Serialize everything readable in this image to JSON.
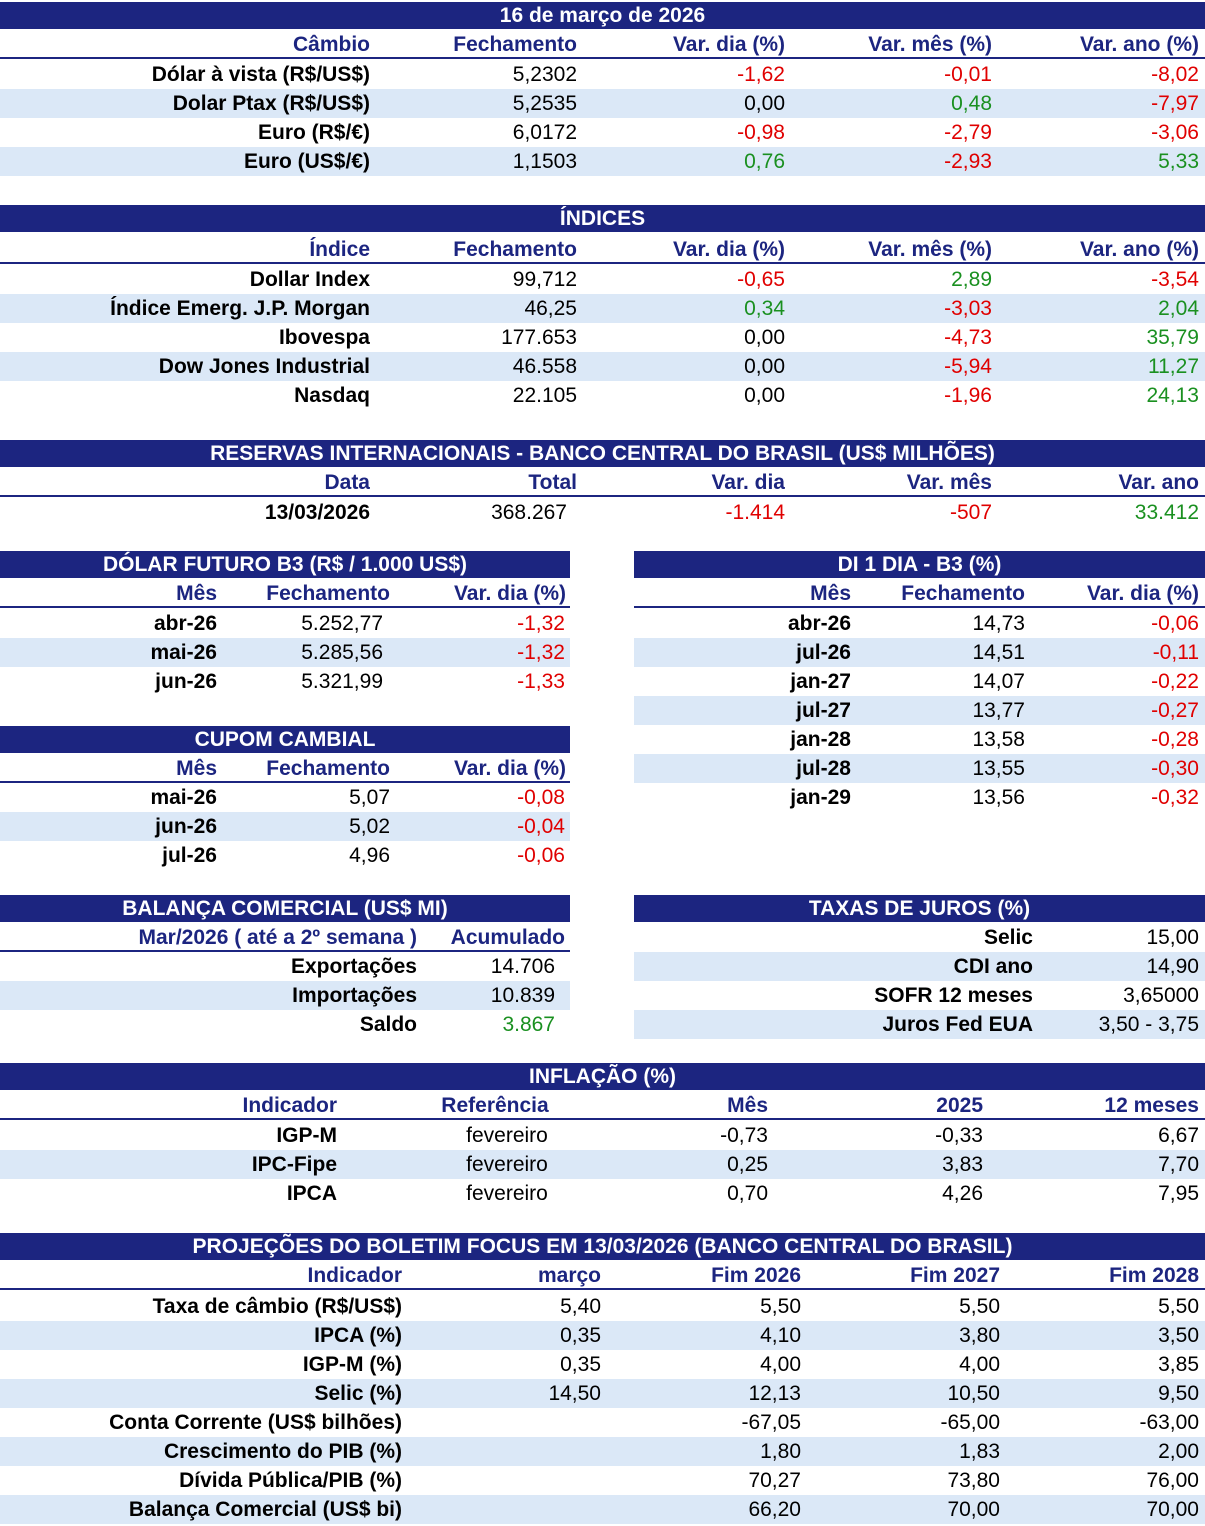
{
  "colors": {
    "header_bg": "#1c2580",
    "alt_row_bg": "#dbe8f7",
    "negative": "#e00000",
    "positive": "#1a9020"
  },
  "title": "16 de março de 2026",
  "cambio": {
    "headers": [
      "Câmbio",
      "Fechamento",
      "Var. dia (%)",
      "Var. mês (%)",
      "Var. ano (%)"
    ],
    "rows": [
      [
        "Dólar à vista (R$/US$)",
        "5,2302",
        "-1,62",
        "-0,01",
        "-8,02"
      ],
      [
        "Dolar Ptax (R$/US$)",
        "5,2535",
        "0,00",
        "0,48",
        "-7,97"
      ],
      [
        "Euro (R$/€)",
        "6,0172",
        "-0,98",
        "-2,79",
        "-3,06"
      ],
      [
        "Euro (US$/€)",
        "1,1503",
        "0,76",
        "-2,93",
        "5,33"
      ]
    ]
  },
  "indices": {
    "title": "ÍNDICES",
    "headers": [
      "Índice",
      "Fechamento",
      "Var. dia (%)",
      "Var. mês (%)",
      "Var. ano (%)"
    ],
    "rows": [
      [
        "Dollar Index",
        "99,712",
        "-0,65",
        "2,89",
        "-3,54"
      ],
      [
        "Índice Emerg. J.P. Morgan",
        "46,25",
        "0,34",
        "-3,03",
        "2,04"
      ],
      [
        "Ibovespa",
        "177.653",
        "0,00",
        "-4,73",
        "35,79"
      ],
      [
        "Dow Jones Industrial",
        "46.558",
        "0,00",
        "-5,94",
        "11,27"
      ],
      [
        "Nasdaq",
        "22.105",
        "0,00",
        "-1,96",
        "24,13"
      ]
    ]
  },
  "reservas": {
    "title": "RESERVAS INTERNACIONAIS - BANCO CENTRAL DO BRASIL (US$ MILHÕES)",
    "headers": [
      "Data",
      "Total",
      "Var. dia",
      "Var. mês",
      "Var. ano"
    ],
    "rows": [
      [
        "13/03/2026",
        "368.267",
        "-1.414",
        "-507",
        "33.412"
      ]
    ]
  },
  "dolar_futuro": {
    "title": "DÓLAR FUTURO B3 (R$ / 1.000 US$)",
    "headers": [
      "Mês",
      "Fechamento",
      "Var. dia (%)"
    ],
    "rows": [
      [
        "abr-26",
        "5.252,77",
        "-1,32"
      ],
      [
        "mai-26",
        "5.285,56",
        "-1,32"
      ],
      [
        "jun-26",
        "5.321,99",
        "-1,33"
      ]
    ]
  },
  "cupom": {
    "title": "CUPOM CAMBIAL",
    "headers": [
      "Mês",
      "Fechamento",
      "Var. dia (%)"
    ],
    "rows": [
      [
        "mai-26",
        "5,07",
        "-0,08"
      ],
      [
        "jun-26",
        "5,02",
        "-0,04"
      ],
      [
        "jul-26",
        "4,96",
        "-0,06"
      ]
    ]
  },
  "di": {
    "title": "DI 1 DIA - B3 (%)",
    "headers": [
      "Mês",
      "Fechamento",
      "Var. dia (%)"
    ],
    "rows": [
      [
        "abr-26",
        "14,73",
        "-0,06"
      ],
      [
        "jul-26",
        "14,51",
        "-0,11"
      ],
      [
        "jan-27",
        "14,07",
        "-0,22"
      ],
      [
        "jul-27",
        "13,77",
        "-0,27"
      ],
      [
        "jan-28",
        "13,58",
        "-0,28"
      ],
      [
        "jul-28",
        "13,55",
        "-0,30"
      ],
      [
        "jan-29",
        "13,56",
        "-0,32"
      ]
    ]
  },
  "balanca": {
    "title": "BALANÇA COMERCIAL (US$ MI)",
    "headers": [
      "Mar/2026 ( até a 2º semana )",
      "Acumulado"
    ],
    "rows": [
      [
        "Exportações",
        "14.706"
      ],
      [
        "Importações",
        "10.839"
      ],
      [
        "Saldo",
        "3.867"
      ]
    ]
  },
  "juros": {
    "title": "TAXAS DE JUROS (%)",
    "rows": [
      [
        "Selic",
        "15,00"
      ],
      [
        "CDI ano",
        "14,90"
      ],
      [
        "SOFR 12 meses",
        "3,65000"
      ],
      [
        "Juros Fed EUA",
        "3,50 - 3,75"
      ]
    ]
  },
  "inflacao": {
    "title": "INFLAÇÃO (%)",
    "headers": [
      "Indicador",
      "Referência",
      "Mês",
      "2025",
      "12 meses"
    ],
    "rows": [
      [
        "IGP-M",
        "fevereiro",
        "-0,73",
        "-0,33",
        "6,67"
      ],
      [
        "IPC-Fipe",
        "fevereiro",
        "0,25",
        "3,83",
        "7,70"
      ],
      [
        "IPCA",
        "fevereiro",
        "0,70",
        "4,26",
        "7,95"
      ]
    ]
  },
  "focus": {
    "title": "PROJEÇÕES DO BOLETIM FOCUS EM 13/03/2026 (BANCO CENTRAL DO BRASIL)",
    "headers": [
      "Indicador",
      "março",
      "Fim 2026",
      "Fim 2027",
      "Fim 2028"
    ],
    "rows": [
      [
        "Taxa de câmbio (R$/US$)",
        "5,40",
        "5,50",
        "5,50",
        "5,50"
      ],
      [
        "IPCA (%)",
        "0,35",
        "4,10",
        "3,80",
        "3,50"
      ],
      [
        "IGP-M (%)",
        "0,35",
        "4,00",
        "4,00",
        "3,85"
      ],
      [
        "Selic (%)",
        "14,50",
        "12,13",
        "10,50",
        "9,50"
      ],
      [
        "Conta Corrente (US$ bilhões)",
        "",
        "-67,05",
        "-65,00",
        "-63,00"
      ],
      [
        "Crescimento do PIB (%)",
        "",
        "1,80",
        "1,83",
        "2,00"
      ],
      [
        "Dívida Pública/PIB (%)",
        "",
        "70,27",
        "73,80",
        "76,00"
      ],
      [
        "Balança Comercial (US$ bi)",
        "",
        "66,20",
        "70,00",
        "70,00"
      ]
    ]
  }
}
